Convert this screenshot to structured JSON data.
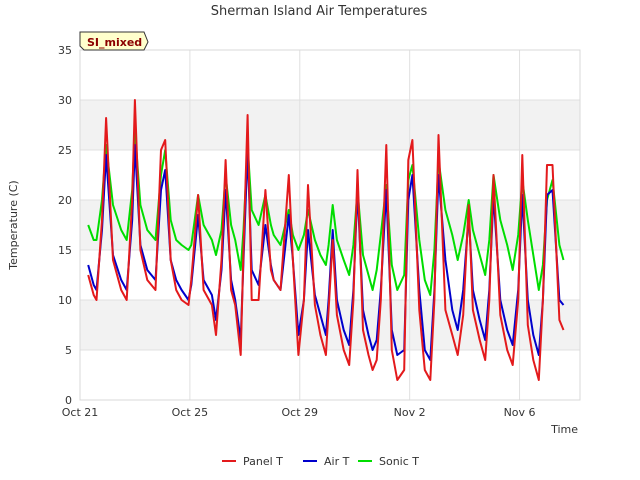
{
  "chart_data": {
    "type": "line",
    "title": "Sherman Island Air Temperatures",
    "xlabel": "Time",
    "ylabel": "Temperature (C)",
    "badge": "SI_mixed",
    "ylim": [
      0,
      35
    ],
    "yticks": [
      0,
      5,
      10,
      15,
      20,
      25,
      30,
      35
    ],
    "xlim": [
      0,
      18.2
    ],
    "xticks": [
      {
        "value": 0,
        "label": "Oct 21"
      },
      {
        "value": 4,
        "label": "Oct 25"
      },
      {
        "value": 8,
        "label": "Oct 29"
      },
      {
        "value": 12,
        "label": "Nov 2"
      },
      {
        "value": 16,
        "label": "Nov 6"
      }
    ],
    "grid": true,
    "legend_position": "bottom",
    "series": [
      {
        "name": "Panel T",
        "color": "#e31a1c",
        "x": [
          0.3,
          0.5,
          0.6,
          0.8,
          0.95,
          1.2,
          1.5,
          1.7,
          1.9,
          2.0,
          2.2,
          2.45,
          2.75,
          2.95,
          3.1,
          3.3,
          3.5,
          3.7,
          3.95,
          4.05,
          4.3,
          4.5,
          4.8,
          4.95,
          5.15,
          5.3,
          5.5,
          5.65,
          5.85,
          5.95,
          6.1,
          6.25,
          6.5,
          6.75,
          6.95,
          7.05,
          7.3,
          7.6,
          7.75,
          7.95,
          8.15,
          8.3,
          8.55,
          8.75,
          8.95,
          9.05,
          9.2,
          9.35,
          9.6,
          9.8,
          9.95,
          10.1,
          10.3,
          10.5,
          10.65,
          10.8,
          10.95,
          11.15,
          11.35,
          11.55,
          11.8,
          11.95,
          12.1,
          12.35,
          12.55,
          12.75,
          12.9,
          13.05,
          13.3,
          13.55,
          13.75,
          13.95,
          14.15,
          14.3,
          14.55,
          14.75,
          14.9,
          15.05,
          15.3,
          15.55,
          15.75,
          15.95,
          16.1,
          16.3,
          16.5,
          16.7,
          16.85,
          17.0,
          17.2,
          17.45,
          17.6
        ],
        "values": [
          12.5,
          10.5,
          10.0,
          18.0,
          28.2,
          14.0,
          11.0,
          10.0,
          20.0,
          30.0,
          15.0,
          12.0,
          11.0,
          25.0,
          26.0,
          14.0,
          11.0,
          10.0,
          9.5,
          12.0,
          20.5,
          11.0,
          9.5,
          6.5,
          14.0,
          24.0,
          11.0,
          9.5,
          4.5,
          15.0,
          28.5,
          10.0,
          10.0,
          21.0,
          13.0,
          12.0,
          11.0,
          22.5,
          14.0,
          4.5,
          10.0,
          21.5,
          9.5,
          6.5,
          4.5,
          9.0,
          16.0,
          8.5,
          5.0,
          3.5,
          10.0,
          23.0,
          7.0,
          4.5,
          3.0,
          4.0,
          10.0,
          25.5,
          5.0,
          2.0,
          3.0,
          24.0,
          26.0,
          9.0,
          3.0,
          2.0,
          10.0,
          26.5,
          9.0,
          6.5,
          4.5,
          8.5,
          19.5,
          9.0,
          6.0,
          4.0,
          10.0,
          22.5,
          8.5,
          5.0,
          3.5,
          10.0,
          24.5,
          7.5,
          4.0,
          2.0,
          10.0,
          23.5,
          23.5,
          8.0,
          7.0
        ]
      },
      {
        "name": "Air T",
        "color": "#0000cc",
        "x": [
          0.3,
          0.5,
          0.6,
          0.8,
          0.95,
          1.2,
          1.5,
          1.7,
          1.9,
          2.0,
          2.2,
          2.45,
          2.75,
          2.95,
          3.1,
          3.3,
          3.5,
          3.7,
          3.95,
          4.05,
          4.3,
          4.5,
          4.8,
          4.95,
          5.15,
          5.3,
          5.5,
          5.65,
          5.85,
          5.95,
          6.1,
          6.25,
          6.5,
          6.75,
          6.95,
          7.05,
          7.3,
          7.6,
          7.75,
          7.95,
          8.15,
          8.3,
          8.55,
          8.75,
          8.95,
          9.05,
          9.2,
          9.35,
          9.6,
          9.8,
          9.95,
          10.1,
          10.3,
          10.5,
          10.65,
          10.8,
          10.95,
          11.15,
          11.35,
          11.55,
          11.8,
          11.95,
          12.1,
          12.35,
          12.55,
          12.75,
          12.9,
          13.05,
          13.3,
          13.55,
          13.75,
          13.95,
          14.15,
          14.3,
          14.55,
          14.75,
          14.9,
          15.05,
          15.3,
          15.55,
          15.75,
          15.95,
          16.1,
          16.3,
          16.5,
          16.7,
          16.85,
          17.0,
          17.2,
          17.45,
          17.6
        ],
        "values": [
          13.5,
          11.5,
          11.0,
          17.0,
          24.5,
          14.5,
          12.0,
          11.0,
          18.0,
          25.5,
          15.5,
          13.0,
          12.0,
          21.0,
          23.0,
          14.0,
          12.0,
          11.0,
          10.0,
          11.5,
          18.5,
          12.0,
          10.5,
          8.0,
          13.0,
          21.0,
          12.0,
          10.0,
          6.0,
          14.0,
          25.0,
          13.0,
          11.5,
          17.5,
          13.5,
          12.0,
          11.0,
          18.5,
          14.0,
          6.5,
          10.0,
          17.0,
          10.5,
          8.5,
          6.5,
          10.0,
          17.0,
          10.0,
          7.0,
          5.5,
          11.0,
          21.0,
          9.0,
          6.5,
          5.0,
          6.0,
          11.0,
          21.0,
          7.0,
          4.5,
          5.0,
          20.0,
          22.5,
          11.0,
          5.0,
          4.0,
          11.0,
          22.5,
          14.0,
          9.0,
          7.0,
          11.0,
          18.5,
          11.0,
          8.0,
          6.0,
          11.0,
          20.5,
          10.0,
          7.0,
          5.5,
          11.0,
          20.5,
          10.0,
          6.5,
          4.5,
          10.0,
          20.5,
          21.0,
          10.0,
          9.5
        ]
      },
      {
        "name": "Sonic T",
        "color": "#00dd00",
        "x": [
          0.3,
          0.5,
          0.6,
          0.8,
          0.95,
          1.2,
          1.5,
          1.7,
          1.9,
          2.0,
          2.2,
          2.45,
          2.75,
          2.95,
          3.1,
          3.3,
          3.5,
          3.7,
          3.95,
          4.05,
          4.3,
          4.5,
          4.8,
          4.95,
          5.15,
          5.3,
          5.5,
          5.65,
          5.85,
          5.95,
          6.1,
          6.25,
          6.5,
          6.75,
          6.95,
          7.05,
          7.3,
          7.6,
          7.75,
          7.95,
          8.15,
          8.3,
          8.55,
          8.75,
          8.95,
          9.05,
          9.2,
          9.35,
          9.6,
          9.8,
          9.95,
          10.1,
          10.3,
          10.5,
          10.65,
          10.8,
          10.95,
          11.15,
          11.35,
          11.55,
          11.8,
          11.95,
          12.1,
          12.35,
          12.55,
          12.75,
          12.9,
          13.05,
          13.3,
          13.55,
          13.75,
          13.95,
          14.15,
          14.3,
          14.55,
          14.75,
          14.9,
          15.05,
          15.3,
          15.55,
          15.75,
          15.95,
          16.1,
          16.3,
          16.5,
          16.7,
          16.85,
          17.0,
          17.2,
          17.45,
          17.6
        ],
        "values": [
          17.5,
          16.0,
          16.0,
          20.0,
          25.5,
          19.5,
          17.0,
          16.0,
          21.0,
          27.0,
          19.5,
          17.0,
          16.0,
          22.5,
          25.0,
          18.0,
          16.0,
          15.5,
          15.0,
          15.5,
          20.5,
          17.5,
          16.0,
          14.5,
          17.0,
          22.5,
          17.5,
          16.0,
          13.0,
          17.0,
          25.5,
          19.0,
          17.5,
          20.5,
          17.5,
          16.5,
          15.5,
          19.0,
          16.5,
          15.0,
          16.5,
          19.0,
          16.0,
          14.5,
          13.5,
          15.5,
          19.5,
          16.0,
          14.0,
          12.5,
          15.5,
          21.0,
          14.5,
          12.5,
          11.0,
          13.0,
          16.5,
          21.5,
          13.5,
          11.0,
          12.5,
          22.0,
          23.5,
          16.0,
          12.0,
          10.5,
          15.0,
          24.0,
          19.0,
          16.5,
          14.0,
          16.5,
          20.0,
          17.0,
          14.5,
          12.5,
          16.0,
          22.5,
          18.0,
          15.5,
          13.0,
          16.5,
          22.0,
          18.0,
          14.5,
          11.0,
          13.5,
          20.0,
          22.0,
          15.5,
          14.0
        ]
      }
    ]
  }
}
